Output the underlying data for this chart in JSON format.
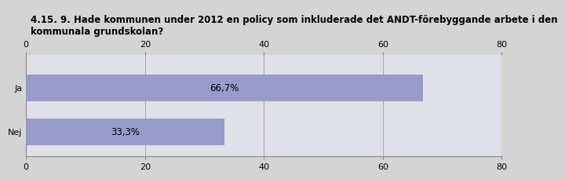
{
  "title": "4.15. 9. Hade kommunen under 2012 en policy som inkluderade det ANDT-förebyggande arbete i den\nkommunala grundskolan?",
  "categories": [
    "Ja",
    "Nej"
  ],
  "values": [
    66.7,
    33.3
  ],
  "labels": [
    "66,7%",
    "33,3%"
  ],
  "bar_color": "#9999cc",
  "background_color": "#d4d4d4",
  "plot_background": "#e0e0e8",
  "xlim": [
    0,
    80
  ],
  "xticks": [
    0,
    20,
    40,
    60,
    80
  ],
  "title_fontsize": 8.5,
  "tick_fontsize": 8,
  "label_fontsize": 8.5,
  "title_color": "#000000",
  "grid_color": "#aaaaaa",
  "bar_height": 0.6
}
